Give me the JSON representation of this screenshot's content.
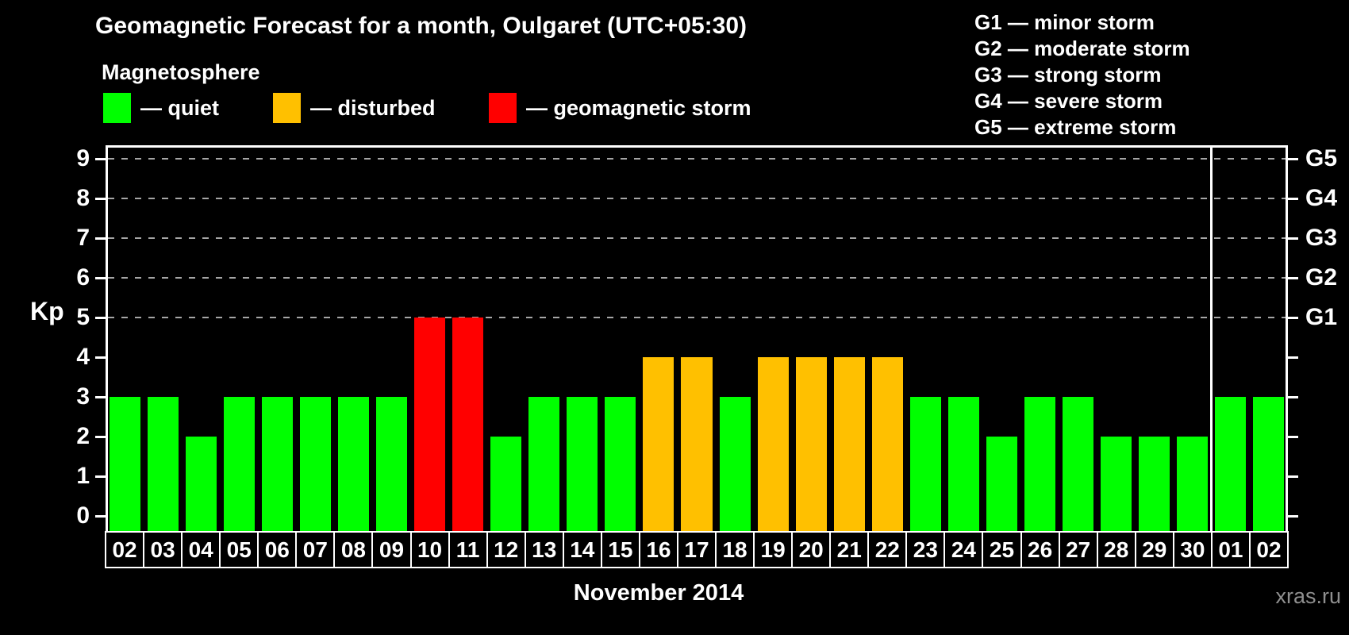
{
  "title": "Geomagnetic Forecast for a month, Oulgaret (UTC+05:30)",
  "subtitle": "Magnetosphere",
  "legend": {
    "items": [
      {
        "key": "quiet",
        "label": "— quiet",
        "color": "#00ff00"
      },
      {
        "key": "disturbed",
        "label": "— disturbed",
        "color": "#ffc000"
      },
      {
        "key": "storm",
        "label": "— geomagnetic storm",
        "color": "#ff0000"
      }
    ]
  },
  "storm_legend": [
    "G1 — minor storm",
    "G2 — moderate storm",
    "G3 — strong storm",
    "G4 — severe storm",
    "G5 — extreme storm"
  ],
  "watermark": "xras.ru",
  "chart_data": {
    "type": "bar",
    "title": "Geomagnetic Forecast for a month, Oulgaret (UTC+05:30)",
    "xlabel": "November 2014",
    "ylabel": "Kp",
    "ylim": [
      0,
      9
    ],
    "yticks": [
      0,
      1,
      2,
      3,
      4,
      5,
      6,
      7,
      8,
      9
    ],
    "grid_levels": [
      5,
      6,
      7,
      8,
      9
    ],
    "grid_style": "dashed gray horizontal",
    "legend_position": "top",
    "right_axis": [
      {
        "value": 5,
        "label": "G1"
      },
      {
        "value": 6,
        "label": "G2"
      },
      {
        "value": 7,
        "label": "G3"
      },
      {
        "value": 8,
        "label": "G4"
      },
      {
        "value": 9,
        "label": "G5"
      }
    ],
    "categories": [
      "02",
      "03",
      "04",
      "05",
      "06",
      "07",
      "08",
      "09",
      "10",
      "11",
      "12",
      "13",
      "14",
      "15",
      "16",
      "17",
      "18",
      "19",
      "20",
      "21",
      "22",
      "23",
      "24",
      "25",
      "26",
      "27",
      "28",
      "29",
      "30",
      "01",
      "02"
    ],
    "values": [
      3,
      3,
      2,
      3,
      3,
      3,
      3,
      3,
      5,
      5,
      2,
      3,
      3,
      3,
      4,
      4,
      3,
      4,
      4,
      4,
      4,
      3,
      3,
      2,
      3,
      3,
      2,
      2,
      2,
      3,
      3
    ],
    "statuses": [
      "quiet",
      "quiet",
      "quiet",
      "quiet",
      "quiet",
      "quiet",
      "quiet",
      "quiet",
      "storm",
      "storm",
      "quiet",
      "quiet",
      "quiet",
      "quiet",
      "disturbed",
      "disturbed",
      "quiet",
      "disturbed",
      "disturbed",
      "disturbed",
      "disturbed",
      "quiet",
      "quiet",
      "quiet",
      "quiet",
      "quiet",
      "quiet",
      "quiet",
      "quiet",
      "quiet",
      "quiet"
    ],
    "bar_colors": {
      "quiet": "#00ff00",
      "disturbed": "#ffc000",
      "storm": "#ff0000"
    },
    "month_separator_after_index": 28
  }
}
